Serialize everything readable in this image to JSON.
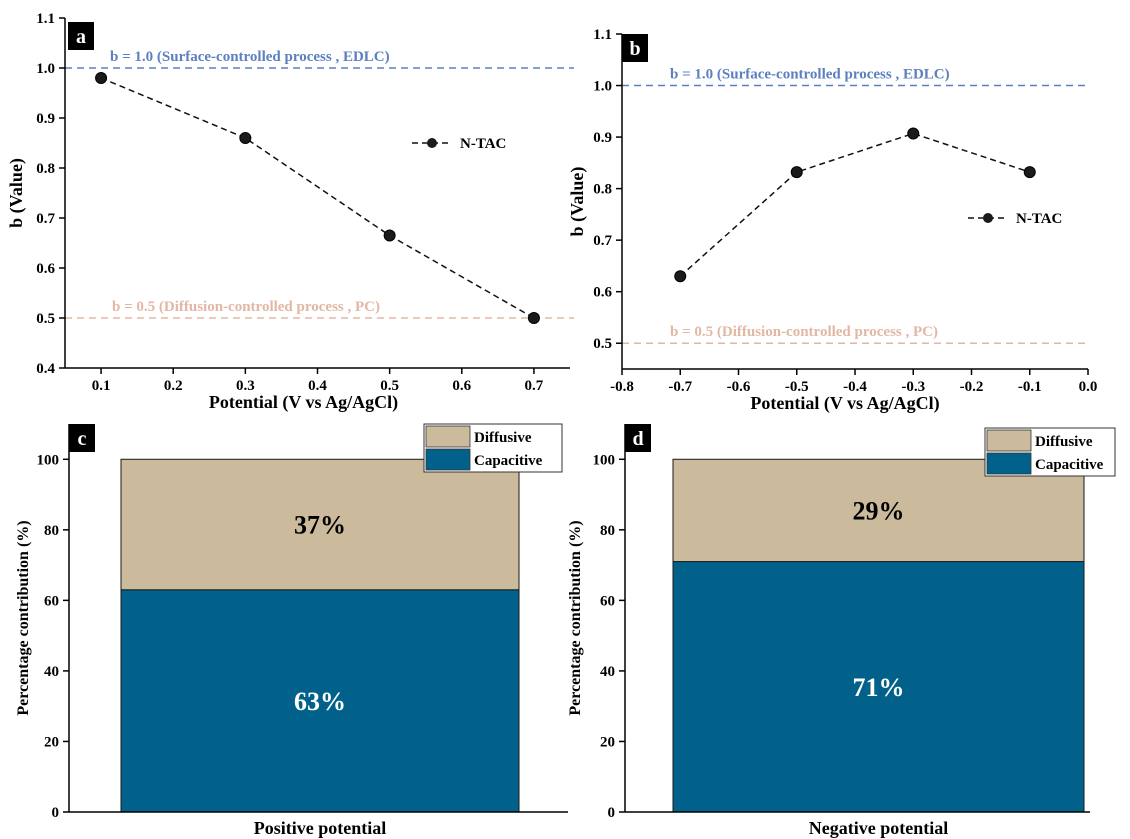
{
  "colors": {
    "surface_line": "#5b7fbf",
    "diffusion_line": "#e2b7a4",
    "diffusive_fill": "#cbbb9c",
    "capacitive_fill": "#02618a",
    "marker": "#1b1b1b"
  },
  "chart_data": [
    {
      "panel": "a",
      "type": "line",
      "xlabel": "Potential (V vs Ag/AgCl)",
      "ylabel": "b (Value)",
      "xlim": [
        0.05,
        0.75
      ],
      "ylim": [
        0.4,
        1.1
      ],
      "xticks": [
        "0.1",
        "0.2",
        "0.3",
        "0.4",
        "0.5",
        "0.6",
        "0.7"
      ],
      "yticks": [
        "0.4",
        "0.5",
        "0.6",
        "0.7",
        "0.8",
        "0.9",
        "1.0",
        "1.1"
      ],
      "series": [
        {
          "name": "N-TAC",
          "x": [
            0.1,
            0.3,
            0.5,
            0.7
          ],
          "y": [
            0.98,
            0.86,
            0.665,
            0.5
          ]
        }
      ],
      "legend": "right",
      "ref_lines": [
        {
          "y": 1.0,
          "label": "b = 1.0 (Surface-controlled process , EDLC)"
        },
        {
          "y": 0.5,
          "label": "b = 0.5 (Diffusion-controlled process , PC)"
        }
      ]
    },
    {
      "panel": "b",
      "type": "line",
      "xlabel": "Potential (V vs Ag/AgCl)",
      "ylabel": "b (Value)",
      "xlim": [
        -0.8,
        0.0
      ],
      "ylim": [
        0.45,
        1.1
      ],
      "xticks": [
        "-0.8",
        "-0.7",
        "-0.6",
        "-0.5",
        "-0.4",
        "-0.3",
        "-0.2",
        "-0.1",
        "0.0"
      ],
      "yticks": [
        "0.5",
        "0.6",
        "0.7",
        "0.8",
        "0.9",
        "1.0",
        "1.1"
      ],
      "series": [
        {
          "name": "N-TAC",
          "x": [
            -0.7,
            -0.5,
            -0.3,
            -0.1
          ],
          "y": [
            0.63,
            0.832,
            0.907,
            0.832
          ]
        }
      ],
      "legend": "right",
      "ref_lines": [
        {
          "y": 1.0,
          "label": "b = 1.0 (Surface-controlled process , EDLC)"
        },
        {
          "y": 0.5,
          "label": "b = 0.5 (Diffusion-controlled process , PC)"
        }
      ]
    },
    {
      "panel": "c",
      "type": "bar",
      "stacked": true,
      "xlabel": "Positive potential",
      "ylabel": "Percentage contribution (%)",
      "ylim": [
        0,
        110
      ],
      "yticks": [
        "0",
        "20",
        "40",
        "60",
        "80",
        "100"
      ],
      "series": [
        {
          "name": "Capacitive",
          "value": 63,
          "label": "63%"
        },
        {
          "name": "Diffusive",
          "value": 37,
          "label": "37%"
        }
      ],
      "legend": "top-right"
    },
    {
      "panel": "d",
      "type": "bar",
      "stacked": true,
      "xlabel": "Negative potential",
      "ylabel": "Percentage contribution (%)",
      "ylim": [
        0,
        110
      ],
      "yticks": [
        "0",
        "20",
        "40",
        "60",
        "80",
        "100"
      ],
      "series": [
        {
          "name": "Capacitive",
          "value": 71,
          "label": "71%"
        },
        {
          "name": "Diffusive",
          "value": 29,
          "label": "29%"
        }
      ],
      "legend": "top-right"
    }
  ]
}
